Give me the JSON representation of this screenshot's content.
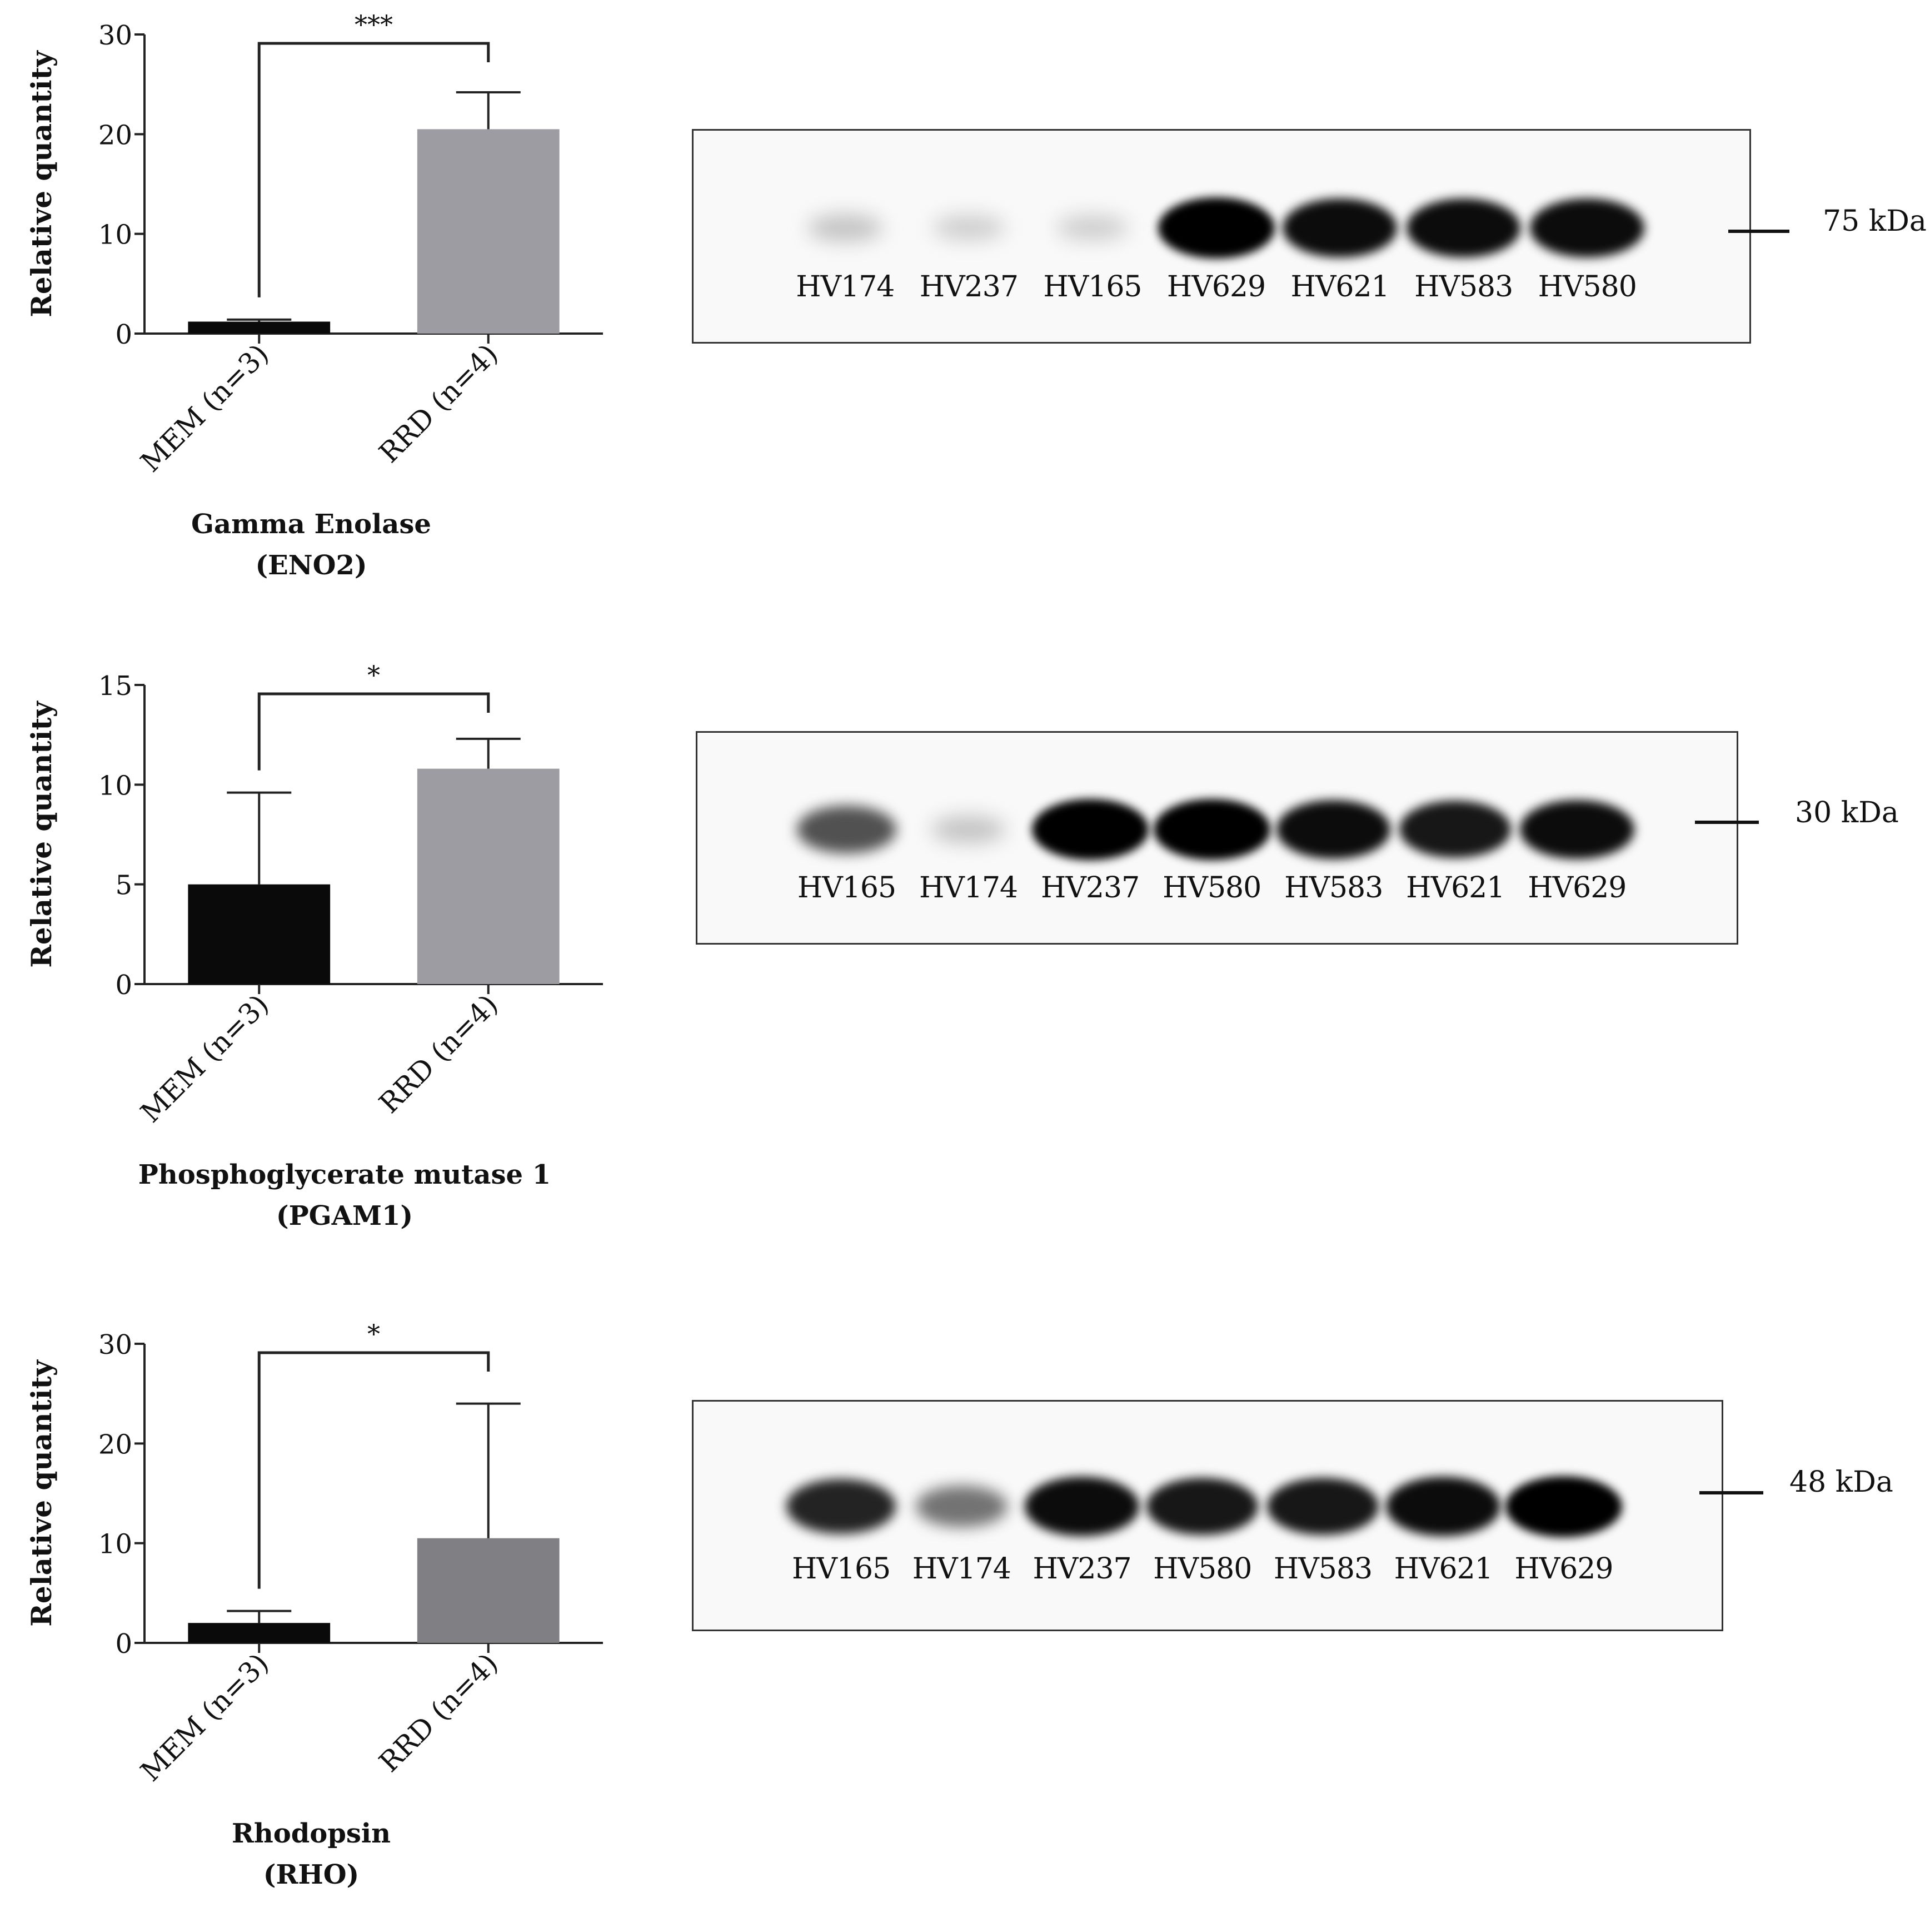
{
  "chart_data": [
    {
      "type": "bar",
      "title": "Gamma Enolase",
      "subtitle": "(ENO2)",
      "ylabel": "Relative quantity",
      "categories": [
        "MEM (n=3)",
        "RRD (n=4)"
      ],
      "values": [
        1.2,
        20.5
      ],
      "errors": [
        0.2,
        3.7
      ],
      "ylim": [
        0,
        30
      ],
      "yticks": [
        0,
        10,
        20,
        30
      ],
      "significance": "***",
      "colors": [
        "#0a0a0a",
        "#9c9ca2"
      ]
    },
    {
      "type": "bar",
      "title": "Phosphoglycerate mutase 1",
      "subtitle": "(PGAM1)",
      "ylabel": "Relative quantity",
      "categories": [
        "MEM (n=3)",
        "RRD (n=4)"
      ],
      "values": [
        5.0,
        10.8
      ],
      "errors": [
        4.6,
        1.5
      ],
      "ylim": [
        0,
        15
      ],
      "yticks": [
        0,
        5,
        10,
        15
      ],
      "significance": "*",
      "colors": [
        "#0a0a0a",
        "#9c9ca2"
      ]
    },
    {
      "type": "bar",
      "title": "Rhodopsin",
      "subtitle": "(RHO)",
      "ylabel": "Relative quantity",
      "categories": [
        "MEM (n=3)",
        "RRD (n=4)"
      ],
      "values": [
        2.0,
        10.5
      ],
      "errors": [
        1.2,
        13.5
      ],
      "ylim": [
        0,
        30
      ],
      "yticks": [
        0,
        10,
        20,
        30
      ],
      "significance": "*",
      "colors": [
        "#0a0a0a",
        "#808084"
      ]
    }
  ],
  "blots": [
    {
      "marker": "75 kDa",
      "lanes": [
        "HV174",
        "HV237",
        "HV165",
        "HV629",
        "HV621",
        "HV583",
        "HV580"
      ],
      "intensity": [
        0.15,
        0.1,
        0.1,
        1.0,
        0.95,
        0.95,
        0.95
      ]
    },
    {
      "marker": "30 kDa",
      "lanes": [
        "HV165",
        "HV174",
        "HV237",
        "HV580",
        "HV583",
        "HV621",
        "HV629"
      ],
      "intensity": [
        0.65,
        0.15,
        1.0,
        1.0,
        0.95,
        0.9,
        0.95
      ]
    },
    {
      "marker": "48 kDa",
      "lanes": [
        "HV165",
        "HV174",
        "HV237",
        "HV580",
        "HV583",
        "HV621",
        "HV629"
      ],
      "intensity": [
        0.85,
        0.5,
        0.95,
        0.9,
        0.9,
        0.95,
        1.0
      ]
    }
  ]
}
